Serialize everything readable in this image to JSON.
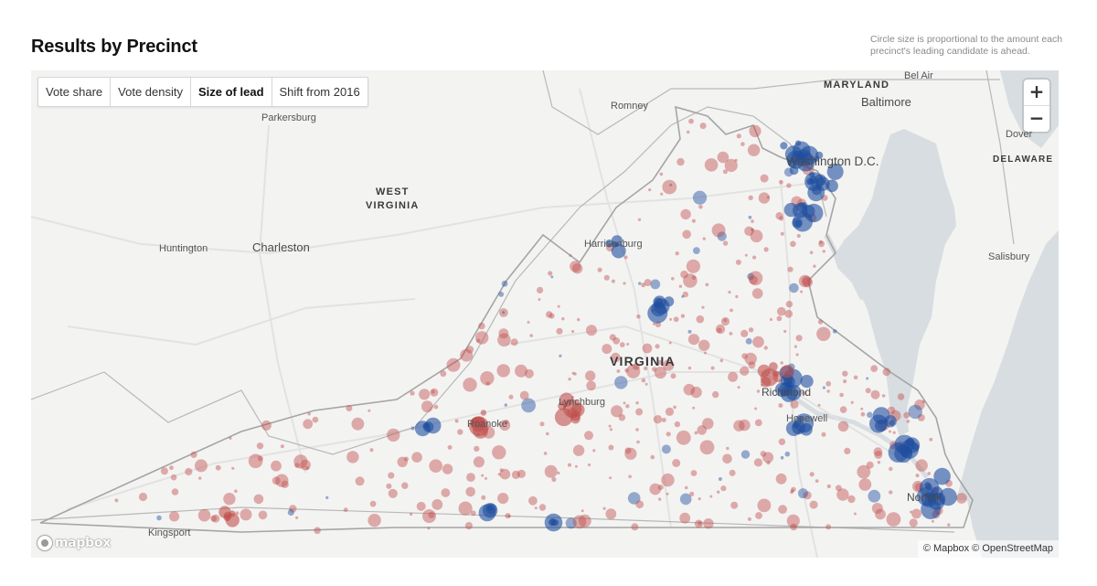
{
  "page": {
    "title": "Results by Precinct",
    "caption": "Circle size is proportional to the amount each precinct's leading candidate is ahead."
  },
  "view_toggle": {
    "options": [
      "Vote share",
      "Vote density",
      "Size of lead",
      "Shift from 2016"
    ],
    "selected": "Size of lead"
  },
  "zoom": {
    "in_label": "+",
    "out_label": "−"
  },
  "colors": {
    "republican": "#c0504d",
    "democrat": "#1f4e9e",
    "land": "#f3f3f2",
    "water": "#d7dde0",
    "border": "#b8b8b8"
  },
  "map": {
    "state_labels": {
      "maryland": "MARYLAND",
      "west_virginia_1": "WEST",
      "west_virginia_2": "VIRGINIA",
      "virginia": "VIRGINIA",
      "delaware": "DELAWARE"
    },
    "city_labels": {
      "bel_air": "Bel Air",
      "baltimore": "Baltimore",
      "romney": "Romney",
      "parkersburg": "Parkersburg",
      "dover": "Dover",
      "washington": "Washington D.C.",
      "huntington": "Huntington",
      "charleston": "Charleston",
      "harrisonburg": "Harrisonburg",
      "salisbury": "Salisbury",
      "richmond": "Richmond",
      "lynchburg": "Lynchburg",
      "roanoke": "Roanoke",
      "hopewell": "Hopewell",
      "norfolk": "Norfolk",
      "kingsport": "Kingsport"
    }
  },
  "branding": {
    "logo_text": "mapbox"
  },
  "attribution": {
    "mapbox": "© Mapbox",
    "osm": "© OpenStreetMap"
  }
}
